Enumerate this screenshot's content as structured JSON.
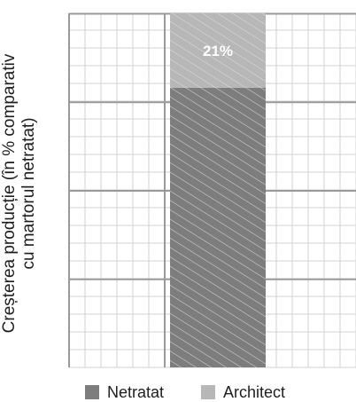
{
  "chart_data": {
    "type": "bar",
    "ylabel_lines": [
      "Creșterea producție (în % comparativ",
      "cu martorul netratat)"
    ],
    "stacked": true,
    "ylim": [
      0,
      100
    ],
    "grid": true,
    "legend_position": "bottom",
    "series": [
      {
        "name": "Netratat",
        "color": "#7d7d7d",
        "values": [
          79
        ]
      },
      {
        "name": "Architect",
        "color": "#b7b7b7",
        "values": [
          21
        ]
      }
    ],
    "data_labels": [
      {
        "series": "Architect",
        "text": "21%"
      }
    ]
  }
}
